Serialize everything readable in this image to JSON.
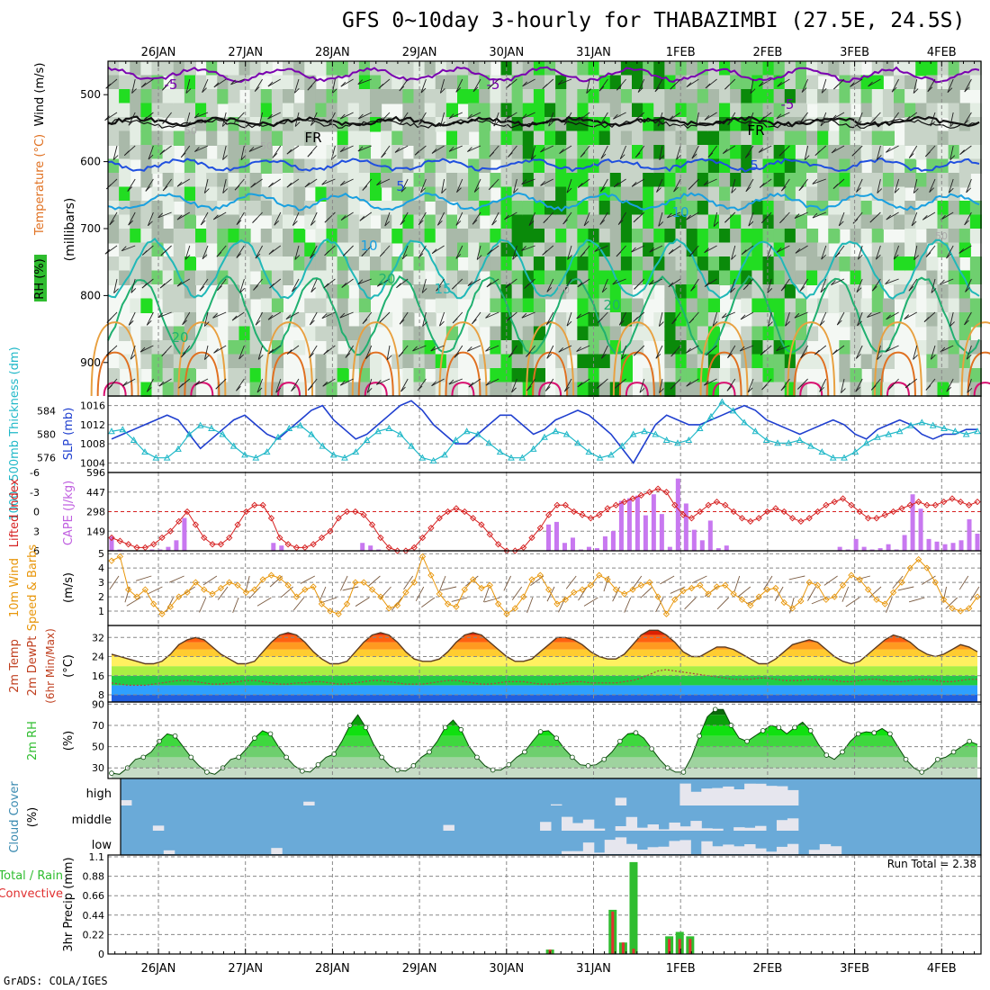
{
  "page": {
    "title": "GFS 0~10day 3-hourly for THABAZIMBI (27.5E, 24.5S)",
    "footer": "GrADS: COLA/IGES"
  },
  "chart_data": [
    {
      "panel": "upper_air",
      "type": "heatmap",
      "x_dates": [
        "26JAN",
        "27JAN",
        "28JAN",
        "29JAN",
        "30JAN",
        "31JAN",
        "1FEB",
        "2FEB",
        "3FEB",
        "4FEB"
      ],
      "ylabel_parts": [
        "RH (%)",
        "Temperature (°C)",
        "Wind (m/s)"
      ],
      "ylabel_units": "(millibars)",
      "y_ticks": [
        500,
        600,
        700,
        800,
        900
      ],
      "ylim": [
        450,
        950
      ],
      "contour_labels": [
        "-5",
        "-5",
        "-5",
        "FR",
        "FR",
        "5",
        "5",
        "10",
        "10",
        "15",
        "20",
        "20",
        "20",
        "50",
        "50",
        "50",
        "50"
      ]
    },
    {
      "panel": "thickness_slp",
      "type": "line",
      "left_label": "1000~500mb Thickness (dm)",
      "left_ticks": [
        576,
        580,
        584
      ],
      "right_label": "SLP (mb)",
      "right_ticks": [
        1004,
        1008,
        1012,
        1016
      ],
      "ylim_slp": [
        1002,
        1018
      ],
      "slp": [
        1009,
        1010,
        1011,
        1012,
        1013,
        1014,
        1013,
        1010,
        1007,
        1009,
        1011,
        1013,
        1014,
        1012,
        1010,
        1009,
        1011,
        1013,
        1015,
        1016,
        1013,
        1011,
        1009,
        1010,
        1012,
        1014,
        1016,
        1017,
        1015,
        1012,
        1010,
        1008,
        1008,
        1010,
        1012,
        1014,
        1014,
        1012,
        1010,
        1011,
        1013,
        1014,
        1015,
        1014,
        1012,
        1010,
        1007,
        1004,
        1008,
        1012,
        1014,
        1013,
        1012,
        1012,
        1013,
        1014,
        1015,
        1016,
        1015,
        1013,
        1012,
        1011,
        1010,
        1011,
        1012,
        1013,
        1012,
        1010,
        1009,
        1011,
        1012,
        1013,
        1012,
        1010,
        1009,
        1010,
        1010,
        1011,
        1011
      ],
      "thickness": [
        580.5,
        580.8,
        579,
        577,
        576,
        576,
        577.5,
        580,
        581.5,
        581,
        580,
        578,
        576.5,
        576,
        577,
        579.5,
        581,
        581.5,
        580,
        578,
        576.5,
        576,
        577,
        579,
        580.5,
        581,
        580,
        578,
        576,
        575.5,
        576.5,
        579,
        580.5,
        580,
        578.5,
        577,
        576,
        576,
        577.5,
        579.5,
        580.5,
        580,
        578.5,
        577,
        576,
        576.5,
        578,
        580,
        580.5,
        580,
        579,
        578.5,
        579,
        581,
        583,
        585.5,
        584,
        582,
        580.5,
        579,
        578.5,
        578.5,
        579,
        578,
        577,
        576,
        576,
        577,
        578.5,
        579.5,
        580,
        580.5,
        581.5,
        582,
        581.5,
        581,
        580.5,
        580,
        580.5
      ],
      "legend_thickness_color": "#20b8c8",
      "legend_slp_color": "#1f3fcf"
    },
    {
      "panel": "lifted_index_cape",
      "type": "bar",
      "left_label": "Lifted Index",
      "left_ticks": [
        "-6",
        "-3",
        "0",
        "3",
        "6"
      ],
      "right_label": "CAPE (J/kg)",
      "right_ticks": [
        149,
        298,
        447,
        596
      ],
      "cape": [
        110,
        10,
        0,
        0,
        0,
        10,
        10,
        30,
        80,
        250,
        0,
        0,
        0,
        0,
        0,
        0,
        0,
        0,
        0,
        0,
        60,
        40,
        0,
        0,
        0,
        0,
        0,
        0,
        0,
        0,
        0,
        60,
        40,
        10,
        0,
        0,
        0,
        0,
        0,
        0,
        0,
        0,
        0,
        0,
        0,
        0,
        0,
        0,
        0,
        0,
        0,
        0,
        0,
        0,
        200,
        220,
        60,
        100,
        10,
        30,
        20,
        110,
        150,
        380,
        400,
        420,
        270,
        430,
        280,
        30,
        550,
        360,
        160,
        80,
        230,
        20,
        40,
        0,
        0,
        0,
        0,
        0,
        0,
        0,
        0,
        0,
        0,
        0,
        0,
        0,
        30,
        10,
        90,
        30,
        10,
        20,
        50,
        10,
        120,
        430,
        320,
        90,
        70,
        50,
        60,
        80,
        240,
        130
      ],
      "lifted_index": [
        4,
        4.5,
        5,
        5.5,
        5.5,
        5,
        4,
        3,
        1.5,
        0,
        2,
        4,
        5,
        5,
        4,
        2,
        0,
        -1,
        -1,
        1,
        4,
        5,
        5.5,
        5.5,
        5,
        4,
        3,
        1,
        0,
        0,
        0.5,
        2,
        4,
        5.5,
        6,
        6,
        5.5,
        4,
        2.5,
        1,
        0,
        -0.5,
        0,
        1,
        2,
        3.5,
        5,
        6,
        6,
        5.5,
        4,
        2.5,
        0.5,
        -1,
        -1,
        0,
        0.5,
        1,
        0.5,
        -0.5,
        -1,
        -1.5,
        -2,
        -2.5,
        -3,
        -3.5,
        -3,
        -1,
        0.5,
        1,
        0,
        -1,
        -1.5,
        -1,
        0,
        1,
        1.5,
        1,
        0,
        -0.5,
        0,
        1,
        1.5,
        1,
        0,
        -1,
        -1.5,
        -2,
        -1,
        0,
        1,
        1,
        0.5,
        0,
        -0.5,
        -1,
        -1.5,
        -1,
        -1,
        -1.5,
        -2,
        -1.5,
        -1,
        -1.5
      ],
      "li_color": "#d62020",
      "cape_color": "#c878f0"
    },
    {
      "panel": "wind10m",
      "type": "line",
      "label": "10m Wind Speed & Barbs",
      "units": "(m/s)",
      "y_ticks": [
        1,
        2,
        3,
        4,
        5
      ],
      "speed": [
        4.5,
        4.8,
        2.5,
        2,
        2.5,
        1.5,
        0.8,
        1.3,
        2,
        2.3,
        3,
        2.5,
        2.2,
        2.6,
        3,
        2.8,
        2.3,
        2.5,
        3.2,
        3.5,
        3.3,
        2.8,
        2,
        2.5,
        2.7,
        1.5,
        1,
        0.8,
        1.5,
        3,
        3,
        2.5,
        2,
        1.2,
        1.4,
        2.3,
        3,
        4.8,
        3.5,
        2.2,
        1.5,
        1.3,
        2.5,
        3.2,
        2.6,
        2.8,
        1.5,
        0.8,
        1.2,
        2,
        3.2,
        3.5,
        2.5,
        1.5,
        1.8,
        2.3,
        2.5,
        2.8,
        3.5,
        3.2,
        2.5,
        2.2,
        2.5,
        2.8,
        3,
        2,
        0.8,
        1.8,
        2.4,
        2.6,
        2.8,
        2.2,
        2.7,
        2.8,
        2.2,
        1.8,
        1.4,
        2,
        2.5,
        2.6,
        1.6,
        1.2,
        1.7,
        3,
        2.8,
        1.8,
        2,
        2.8,
        3.5,
        3.2,
        2.5,
        1.8,
        1.5,
        2.3,
        3,
        4,
        4.6,
        4,
        3,
        1.8,
        1.2,
        1,
        1.2,
        2
      ],
      "line_color": "#e8960a"
    },
    {
      "panel": "temp_dewpt",
      "type": "area",
      "label": "2m Temp 2m DewPt (6hr Min/Max)",
      "units": "(°C)",
      "y_ticks": [
        8,
        16,
        24,
        32
      ],
      "ylim": [
        5,
        37
      ],
      "temp": [
        25,
        24,
        23,
        22,
        21,
        21,
        22,
        25,
        29,
        31,
        32,
        31,
        28,
        25,
        23,
        21,
        21,
        22,
        26,
        30,
        33,
        34,
        33,
        30,
        26,
        23,
        21,
        21,
        22,
        26,
        30,
        33,
        34,
        33,
        30,
        26,
        23,
        22,
        22,
        23,
        26,
        30,
        33,
        34,
        33,
        30,
        27,
        24,
        22,
        22,
        23,
        26,
        29,
        32,
        32,
        31,
        29,
        26,
        24,
        23,
        23,
        25,
        29,
        33,
        35,
        35,
        33,
        30,
        26,
        24,
        24,
        26,
        28,
        28,
        27,
        25,
        23,
        21,
        21,
        23,
        26,
        29,
        30,
        31,
        30,
        27,
        24,
        22,
        21,
        22,
        25,
        28,
        31,
        33,
        32,
        30,
        27,
        25,
        24,
        25,
        27,
        29,
        28,
        26
      ],
      "dewpt": [
        13,
        12.5,
        12,
        12,
        12,
        12.5,
        13,
        13.5,
        14,
        14,
        13.5,
        13,
        12.5,
        12.5,
        13,
        13.5,
        14,
        14,
        13.5,
        13,
        12.5,
        12.5,
        13,
        13,
        13.5,
        13.5,
        13,
        12.5,
        12.5,
        13,
        13.5,
        14,
        14,
        13.5,
        13,
        12.5,
        12.5,
        12.5,
        13,
        13.5,
        14,
        14,
        13.5,
        13,
        12.5,
        12.5,
        13,
        13.5,
        13.5,
        13.5,
        13,
        12.5,
        12.5,
        12.5,
        13,
        13.5,
        13.5,
        13,
        13,
        13,
        13,
        13.5,
        14,
        15,
        16.5,
        18,
        18.5,
        18,
        17.5,
        17,
        16.5,
        16,
        15.5,
        15,
        14.5,
        14.5,
        14.5,
        15,
        15,
        14.5,
        14,
        14,
        14,
        14.5,
        14.5,
        14.5,
        14,
        13.5,
        13.5,
        14,
        14.5,
        14.5,
        14,
        13.5,
        13.5,
        14,
        14.5,
        14.5,
        14,
        13.5,
        13.5,
        14,
        14.5,
        14.5
      ]
    },
    {
      "panel": "rh2m",
      "type": "area",
      "label": "2m RH",
      "units": "(%)",
      "y_ticks": [
        30,
        50,
        70,
        90
      ],
      "ylim": [
        20,
        92
      ],
      "rh": [
        25,
        24,
        30,
        38,
        40,
        45,
        55,
        62,
        60,
        50,
        40,
        32,
        26,
        24,
        30,
        38,
        40,
        48,
        58,
        65,
        62,
        50,
        40,
        32,
        27,
        26,
        33,
        40,
        43,
        55,
        70,
        80,
        68,
        52,
        40,
        32,
        28,
        27,
        32,
        40,
        45,
        55,
        68,
        75,
        66,
        50,
        40,
        32,
        28,
        28,
        33,
        40,
        45,
        55,
        64,
        65,
        58,
        48,
        40,
        33,
        32,
        33,
        38,
        45,
        55,
        62,
        63,
        58,
        48,
        38,
        30,
        26,
        26,
        40,
        60,
        78,
        85,
        85,
        70,
        58,
        55,
        60,
        65,
        70,
        68,
        62,
        68,
        73,
        65,
        52,
        42,
        38,
        45,
        55,
        62,
        64,
        63,
        67,
        62,
        50,
        38,
        30,
        26,
        30,
        38,
        40,
        45,
        50,
        55,
        52
      ]
    },
    {
      "panel": "cloud_cover",
      "type": "heatmap",
      "label": "Cloud Cover",
      "units": "(%)",
      "y_categories": [
        "high",
        "middle",
        "low"
      ]
    },
    {
      "panel": "precip",
      "type": "bar",
      "label": "3hr Precip (mm)",
      "legend_left_total": "Total / Rain",
      "legend_left_conv": "Convective",
      "annotation": "Run Total = 2.38",
      "y_ticks": [
        0,
        0.22,
        0.44,
        0.66,
        0.88,
        1.1
      ],
      "ylim": [
        0,
        1.1
      ],
      "bars": [
        {
          "date_index": 5.0,
          "total": 0.05,
          "convective": 0.05
        },
        {
          "date_index": 5.72,
          "total": 0.5,
          "convective": 0.48
        },
        {
          "date_index": 5.84,
          "total": 0.13,
          "convective": 0.13
        },
        {
          "date_index": 5.96,
          "total": 1.04,
          "convective": 0.06
        },
        {
          "date_index": 6.37,
          "total": 0.2,
          "convective": 0.17
        },
        {
          "date_index": 6.49,
          "total": 0.25,
          "convective": 0.17
        },
        {
          "date_index": 6.61,
          "total": 0.2,
          "convective": 0.17
        }
      ],
      "total_color": "#2fbd2f",
      "conv_color": "#e03030"
    }
  ]
}
